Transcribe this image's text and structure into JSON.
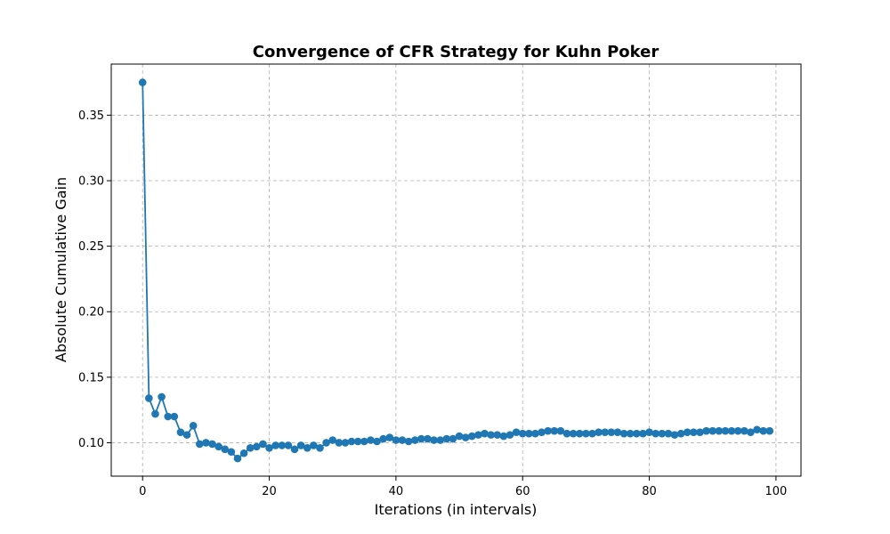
{
  "chart_data": {
    "type": "line",
    "title": "Convergence of CFR Strategy for Kuhn Poker",
    "xlabel": "Iterations (in intervals)",
    "ylabel": "Absolute Cumulative Gain",
    "xlim": [
      -4.95,
      103.95
    ],
    "ylim": [
      0.0745,
      0.389
    ],
    "xticks": [
      0,
      20,
      40,
      60,
      80,
      100
    ],
    "yticks": [
      0.1,
      0.15,
      0.2,
      0.25,
      0.3,
      0.35
    ],
    "grid": true,
    "color": "#1f77b4",
    "x": [
      0,
      1,
      2,
      3,
      4,
      5,
      6,
      7,
      8,
      9,
      10,
      11,
      12,
      13,
      14,
      15,
      16,
      17,
      18,
      19,
      20,
      21,
      22,
      23,
      24,
      25,
      26,
      27,
      28,
      29,
      30,
      31,
      32,
      33,
      34,
      35,
      36,
      37,
      38,
      39,
      40,
      41,
      42,
      43,
      44,
      45,
      46,
      47,
      48,
      49,
      50,
      51,
      52,
      53,
      54,
      55,
      56,
      57,
      58,
      59,
      60,
      61,
      62,
      63,
      64,
      65,
      66,
      67,
      68,
      69,
      70,
      71,
      72,
      73,
      74,
      75,
      76,
      77,
      78,
      79,
      80,
      81,
      82,
      83,
      84,
      85,
      86,
      87,
      88,
      89,
      90,
      91,
      92,
      93,
      94,
      95,
      96,
      97,
      98,
      99
    ],
    "y": [
      0.375,
      0.134,
      0.122,
      0.135,
      0.12,
      0.12,
      0.108,
      0.106,
      0.113,
      0.099,
      0.1,
      0.099,
      0.097,
      0.095,
      0.093,
      0.088,
      0.092,
      0.096,
      0.097,
      0.099,
      0.096,
      0.098,
      0.098,
      0.098,
      0.095,
      0.098,
      0.096,
      0.098,
      0.096,
      0.1,
      0.102,
      0.1,
      0.1,
      0.101,
      0.101,
      0.101,
      0.102,
      0.101,
      0.103,
      0.104,
      0.102,
      0.102,
      0.101,
      0.102,
      0.103,
      0.103,
      0.102,
      0.102,
      0.103,
      0.103,
      0.105,
      0.104,
      0.105,
      0.106,
      0.107,
      0.106,
      0.106,
      0.105,
      0.106,
      0.108,
      0.107,
      0.107,
      0.107,
      0.108,
      0.109,
      0.109,
      0.109,
      0.107,
      0.107,
      0.107,
      0.107,
      0.107,
      0.108,
      0.108,
      0.108,
      0.108,
      0.107,
      0.107,
      0.107,
      0.107,
      0.108,
      0.107,
      0.107,
      0.107,
      0.106,
      0.107,
      0.108,
      0.108,
      0.108,
      0.109,
      0.109,
      0.109,
      0.109,
      0.109,
      0.109,
      0.109,
      0.108,
      0.11,
      0.109,
      0.109
    ]
  }
}
